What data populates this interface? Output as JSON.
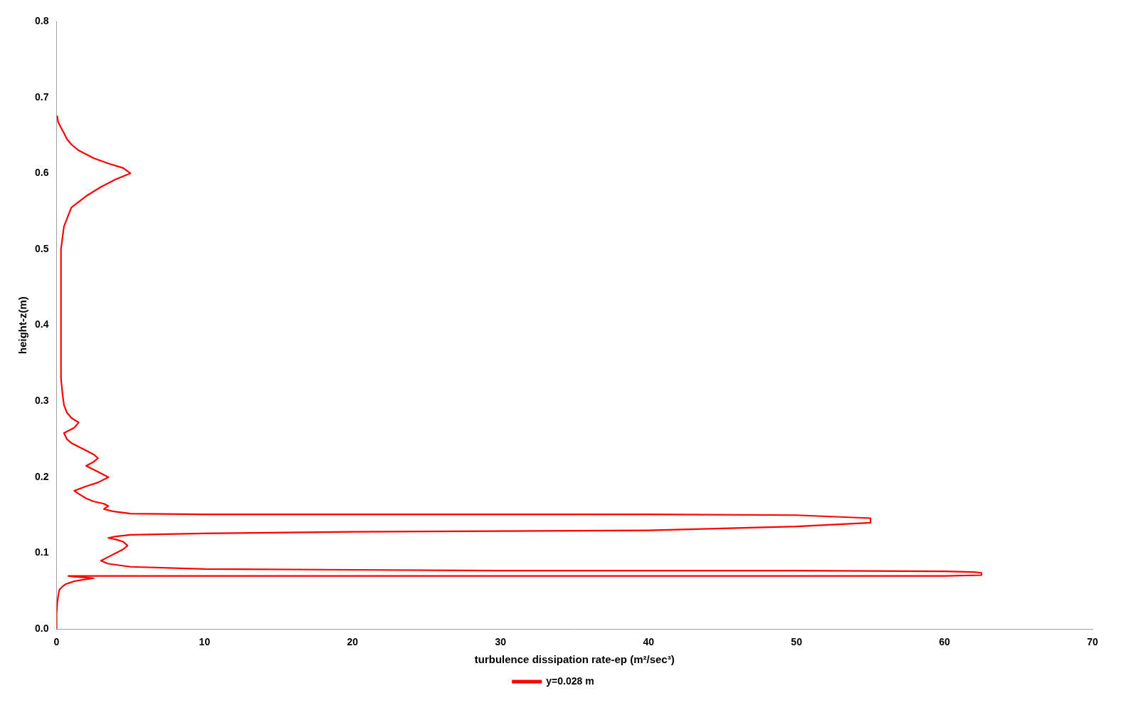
{
  "chart_data": {
    "type": "line",
    "xlabel": "turbulence dissipation rate-ep (m²/sec³)",
    "ylabel": "height-z(m)",
    "xlim": [
      0,
      70
    ],
    "ylim": [
      0,
      0.8
    ],
    "xticks": [
      0,
      10,
      20,
      30,
      40,
      50,
      60,
      70
    ],
    "yticks": [
      {
        "value": 0,
        "label": "0.0"
      },
      0.1,
      0.2,
      0.3,
      0.4,
      0.5,
      0.6,
      0.7,
      0.8
    ],
    "grid": false,
    "legend": "bottom",
    "x": [
      0.0,
      0.0,
      0.05,
      0.1,
      0.15,
      0.2,
      0.4,
      0.6,
      0.9,
      1.2,
      1.8,
      2.5,
      1.8,
      1.2,
      0.8,
      2.5,
      5.0,
      10.0,
      20.0,
      30.0,
      40.0,
      50.0,
      60.0,
      62.5,
      62.5,
      62.0,
      60.0,
      50.0,
      40.0,
      30.0,
      20.0,
      10.0,
      5.0,
      3.5,
      3.0,
      3.5,
      4.0,
      4.5,
      4.8,
      4.5,
      4.0,
      3.5,
      4.0,
      5.0,
      10.0,
      20.0,
      30.0,
      40.0,
      50.0,
      55.0,
      55.0,
      50.0,
      40.0,
      30.0,
      20.0,
      10.0,
      5.0,
      3.8,
      3.2,
      3.5,
      3.2,
      2.5,
      2.0,
      1.5,
      1.2,
      2.0,
      2.8,
      3.5,
      3.0,
      2.5,
      2.0,
      2.5,
      2.8,
      2.5,
      2.0,
      1.5,
      1.0,
      0.7,
      0.5,
      1.2,
      1.5,
      1.0,
      0.7,
      0.5,
      0.4,
      0.3,
      0.3,
      0.3,
      0.3,
      0.3,
      0.5,
      1.0,
      2.0,
      3.0,
      4.0,
      5.0,
      4.5,
      3.5,
      2.5,
      1.5,
      1.0,
      0.7,
      0.5,
      0.3,
      0.1,
      0.05
    ],
    "series": [
      {
        "name": "y=0.028 m",
        "color": "#ff0000",
        "values": [
          0.0,
          0.02,
          0.035,
          0.042,
          0.048,
          0.052,
          0.056,
          0.059,
          0.061,
          0.063,
          0.065,
          0.067,
          0.068,
          0.069,
          0.07,
          0.07,
          0.07,
          0.07,
          0.07,
          0.07,
          0.07,
          0.07,
          0.07,
          0.071,
          0.074,
          0.075,
          0.076,
          0.077,
          0.077,
          0.077,
          0.078,
          0.079,
          0.082,
          0.086,
          0.09,
          0.095,
          0.1,
          0.105,
          0.11,
          0.115,
          0.118,
          0.12,
          0.122,
          0.124,
          0.126,
          0.128,
          0.129,
          0.13,
          0.135,
          0.14,
          0.146,
          0.15,
          0.151,
          0.151,
          0.151,
          0.151,
          0.152,
          0.155,
          0.158,
          0.162,
          0.165,
          0.168,
          0.172,
          0.178,
          0.182,
          0.188,
          0.193,
          0.2,
          0.205,
          0.21,
          0.215,
          0.22,
          0.225,
          0.23,
          0.235,
          0.24,
          0.245,
          0.25,
          0.258,
          0.265,
          0.272,
          0.278,
          0.285,
          0.295,
          0.31,
          0.33,
          0.36,
          0.4,
          0.45,
          0.5,
          0.53,
          0.555,
          0.57,
          0.582,
          0.592,
          0.6,
          0.607,
          0.613,
          0.62,
          0.63,
          0.638,
          0.645,
          0.653,
          0.66,
          0.668,
          0.675
        ]
      }
    ]
  }
}
